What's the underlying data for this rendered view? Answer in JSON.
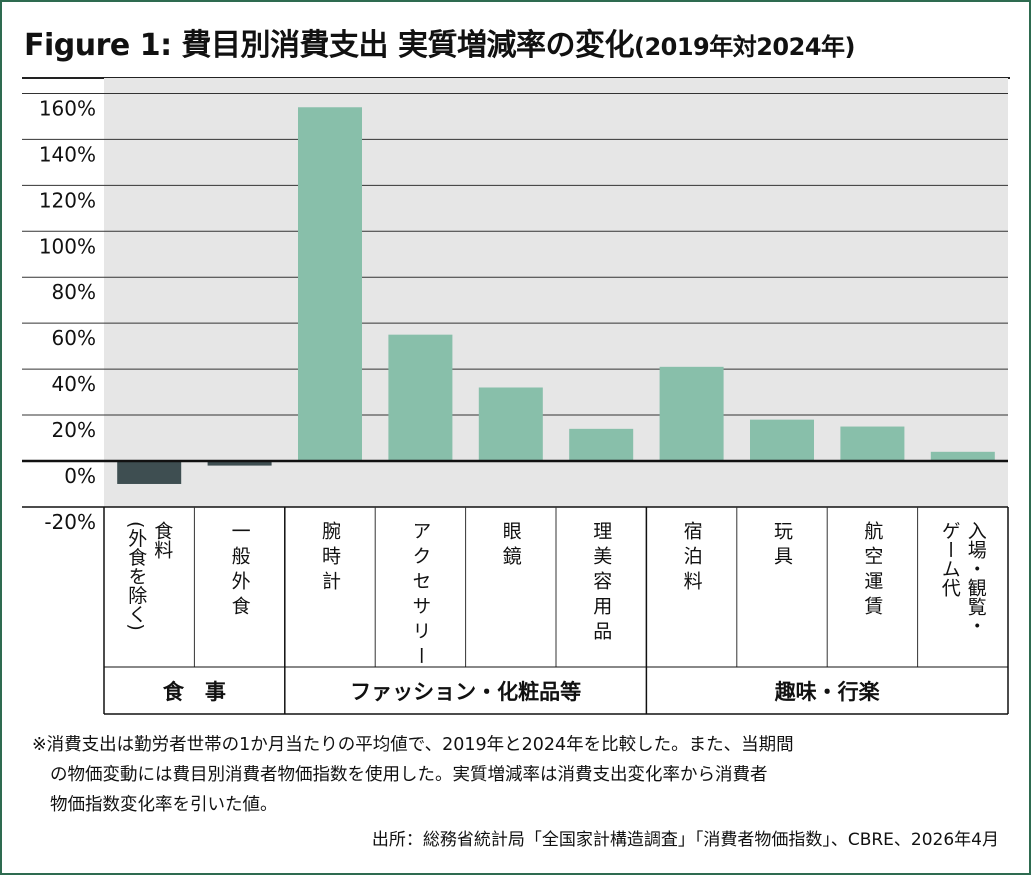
{
  "title": {
    "main": "Figure 1: 費目別消費支出 実質増減率の変化",
    "sub": "(2019年対2024年)"
  },
  "colors": {
    "plot_bg": "#e6e6e6",
    "positive_bar": "#88bfaa",
    "negative_bar": "#3e4e51",
    "frame": "#2e6b50"
  },
  "chart_data": {
    "type": "bar",
    "title": "Figure 1: 費目別消費支出 実質増減率の変化(2019年対2024年)",
    "xlabel": "",
    "ylabel": "",
    "ylim": [
      -20,
      170
    ],
    "y_ticks": [
      160,
      140,
      120,
      100,
      80,
      60,
      40,
      20,
      0,
      -20
    ],
    "y_tick_labels": [
      "160%",
      "140%",
      "120%",
      "100%",
      "80%",
      "60%",
      "40%",
      "20%",
      "0%",
      "-20%"
    ],
    "grid": true,
    "categories": [
      {
        "lines": [
          "食料",
          "(外食を除く)"
        ],
        "group": "food"
      },
      {
        "lines": [
          "一般外食"
        ],
        "group": "food"
      },
      {
        "lines": [
          "腕時計"
        ],
        "group": "fashion"
      },
      {
        "lines": [
          "アクセサリー"
        ],
        "group": "fashion"
      },
      {
        "lines": [
          "眼鏡"
        ],
        "group": "fashion"
      },
      {
        "lines": [
          "理美容用品"
        ],
        "group": "fashion"
      },
      {
        "lines": [
          "宿泊料"
        ],
        "group": "leisure"
      },
      {
        "lines": [
          "玩具"
        ],
        "group": "leisure"
      },
      {
        "lines": [
          "航空運賃"
        ],
        "group": "leisure"
      },
      {
        "lines": [
          "入場・観覧・",
          "ゲーム代"
        ],
        "group": "leisure"
      }
    ],
    "values": [
      -10,
      -2,
      154,
      55,
      32,
      14,
      41,
      18,
      15,
      4
    ],
    "groups": [
      {
        "key": "food",
        "label": "食　事"
      },
      {
        "key": "fashion",
        "label": "ファッション・化粧品等"
      },
      {
        "key": "leisure",
        "label": "趣味・行楽"
      }
    ]
  },
  "notes": {
    "line1": "※消費支出は勤労者世帯の1か月当たりの平均値で、2019年と2024年を比較した。また、当期間",
    "line2": "の物価変動には費目別消費者物価指数を使用した。実質増減率は消費支出変化率から消費者",
    "line3": "物価指数変化率を引いた値。"
  },
  "source": "出所：総務省統計局「全国家計構造調査」「消費者物価指数」、CBRE、2026年4月"
}
